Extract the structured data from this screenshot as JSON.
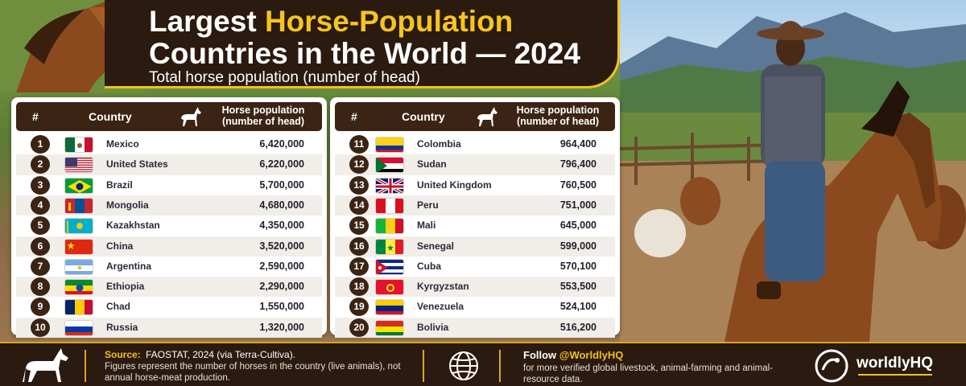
{
  "title": {
    "line1_prefix": "Largest ",
    "line1_highlight": "Horse-Population",
    "line2": "Countries in the World — 2024",
    "subtitle": "Total horse population (number of head)"
  },
  "table": {
    "col_num": "#",
    "col_country": "Country",
    "col_pop_line1": "Horse population",
    "col_pop_line2": "(number of head)"
  },
  "chart_data": {
    "type": "table",
    "columns": [
      "#",
      "Country",
      "Horse population (number of head)"
    ],
    "rows": [
      {
        "rank": 1,
        "country": "Mexico",
        "value": "6,420,000",
        "flag": "mexico"
      },
      {
        "rank": 2,
        "country": "United States",
        "value": "6,220,000",
        "flag": "usa"
      },
      {
        "rank": 3,
        "country": "Brazil",
        "value": "5,700,000",
        "flag": "brazil"
      },
      {
        "rank": 4,
        "country": "Mongolia",
        "value": "4,680,000",
        "flag": "mongolia"
      },
      {
        "rank": 5,
        "country": "Kazakhstan",
        "value": "4,350,000",
        "flag": "kazakhstan"
      },
      {
        "rank": 6,
        "country": "China",
        "value": "3,520,000",
        "flag": "china"
      },
      {
        "rank": 7,
        "country": "Argentina",
        "value": "2,590,000",
        "flag": "argentina"
      },
      {
        "rank": 8,
        "country": "Ethiopia",
        "value": "2,290,000",
        "flag": "ethiopia"
      },
      {
        "rank": 9,
        "country": "Chad",
        "value": "1,550,000",
        "flag": "chad"
      },
      {
        "rank": 10,
        "country": "Russia",
        "value": "1,320,000",
        "flag": "russia"
      },
      {
        "rank": 11,
        "country": "Colombia",
        "value": "964,400",
        "flag": "colombia"
      },
      {
        "rank": 12,
        "country": "Sudan",
        "value": "796,400",
        "flag": "sudan"
      },
      {
        "rank": 13,
        "country": "United Kingdom",
        "value": "760,500",
        "flag": "uk"
      },
      {
        "rank": 14,
        "country": "Peru",
        "value": "751,000",
        "flag": "peru"
      },
      {
        "rank": 15,
        "country": "Mali",
        "value": "645,000",
        "flag": "mali"
      },
      {
        "rank": 16,
        "country": "Senegal",
        "value": "599,000",
        "flag": "senegal"
      },
      {
        "rank": 17,
        "country": "Cuba",
        "value": "570,100",
        "flag": "cuba"
      },
      {
        "rank": 18,
        "country": "Kyrgyzstan",
        "value": "553,500",
        "flag": "kyrgyzstan"
      },
      {
        "rank": 19,
        "country": "Venezuela",
        "value": "524,100",
        "flag": "venezuela"
      },
      {
        "rank": 20,
        "country": "Bolivia",
        "value": "516,200",
        "flag": "bolivia"
      }
    ]
  },
  "footer": {
    "source_label": "Source:",
    "source_text": "FAOSTAT, 2024 (via Terra-Cultiva).",
    "note": "Figures represent the number of horses in the country (live animals), not annual horse-meat production.",
    "follow_label": "Follow ",
    "follow_handle": "@WorldlyHQ",
    "follow_note": "for more verified global livestock, animal-farming and animal-resource data.",
    "brand": "worldlyHQ"
  },
  "colors": {
    "dark_brown": "#3b2414",
    "accent_gold": "#f2c21b",
    "row_alt": "#f1ede8"
  },
  "icons": [
    "horse-icon",
    "globe-icon",
    "worldlyhq-logo-icon"
  ]
}
